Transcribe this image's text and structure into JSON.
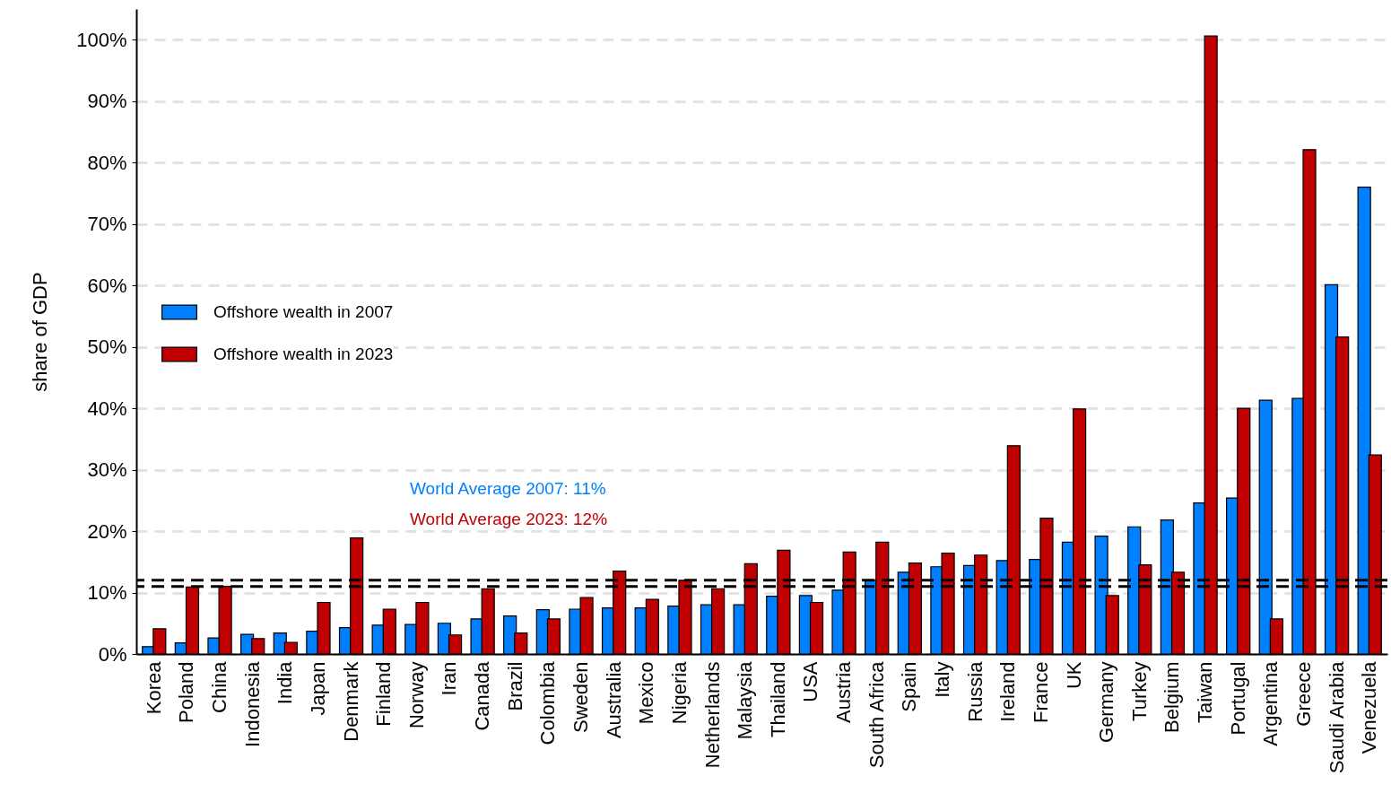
{
  "chart_data": {
    "type": "bar",
    "ylabel": "share of GDP",
    "categories": [
      "Korea",
      "Poland",
      "China",
      "Indonesia",
      "India",
      "Japan",
      "Denmark",
      "Finland",
      "Norway",
      "Iran",
      "Canada",
      "Brazil",
      "Colombia",
      "Sweden",
      "Australia",
      "Mexico",
      "Nigeria",
      "Netherlands",
      "Malaysia",
      "Thailand",
      "USA",
      "Austria",
      "South Africa",
      "Spain",
      "Italy",
      "Russia",
      "Ireland",
      "France",
      "UK",
      "Germany",
      "Turkey",
      "Belgium",
      "Taiwan",
      "Portugal",
      "Argentina",
      "Greece",
      "Saudi Arabia",
      "Venezuela"
    ],
    "series": [
      {
        "name": "Offshore wealth in 2007",
        "color": "#0080ff",
        "values": [
          1.2,
          1.8,
          2.6,
          3.2,
          3.4,
          3.7,
          4.3,
          4.7,
          4.8,
          5.0,
          5.7,
          6.2,
          7.2,
          7.3,
          7.5,
          7.5,
          7.8,
          8.0,
          8.0,
          9.4,
          9.5,
          10.4,
          12.0,
          13.3,
          14.2,
          14.4,
          15.2,
          15.4,
          18.2,
          19.2,
          20.7,
          21.8,
          24.6,
          25.4,
          41.3,
          41.6,
          60.1,
          76.0
        ]
      },
      {
        "name": "Offshore wealth in 2023",
        "color": "#c00000",
        "values": [
          4.1,
          10.9,
          11.0,
          2.5,
          1.9,
          8.4,
          18.9,
          7.3,
          8.4,
          3.1,
          10.6,
          3.4,
          5.7,
          9.2,
          13.5,
          8.9,
          12.0,
          10.6,
          14.7,
          16.9,
          8.4,
          16.6,
          18.2,
          14.8,
          16.4,
          16.1,
          33.9,
          22.1,
          39.9,
          9.5,
          14.5,
          13.3,
          100.6,
          40.0,
          5.7,
          82.1,
          51.6,
          32.4
        ]
      }
    ],
    "ylim": [
      0,
      105
    ],
    "yticks": [
      {
        "value": 0,
        "label": "0%"
      },
      {
        "value": 10,
        "label": "10%"
      },
      {
        "value": 20,
        "label": "20%"
      },
      {
        "value": 30,
        "label": "30%"
      },
      {
        "value": 40,
        "label": "40%"
      },
      {
        "value": 50,
        "label": "50%"
      },
      {
        "value": 60,
        "label": "60%"
      },
      {
        "value": 70,
        "label": "70%"
      },
      {
        "value": 80,
        "label": "80%"
      },
      {
        "value": 90,
        "label": "90%"
      },
      {
        "value": 100,
        "label": "100%"
      }
    ],
    "grid": "y",
    "legend": "left",
    "ref_lines": [
      {
        "axis": "y",
        "value": 11,
        "color": "#000000",
        "line_style": "dashed"
      },
      {
        "axis": "y",
        "value": 12,
        "color": "#000000",
        "line_style": "dashed"
      }
    ],
    "annotations": [
      "World Average 2007: 11%",
      "World Average 2023: 12%"
    ]
  }
}
